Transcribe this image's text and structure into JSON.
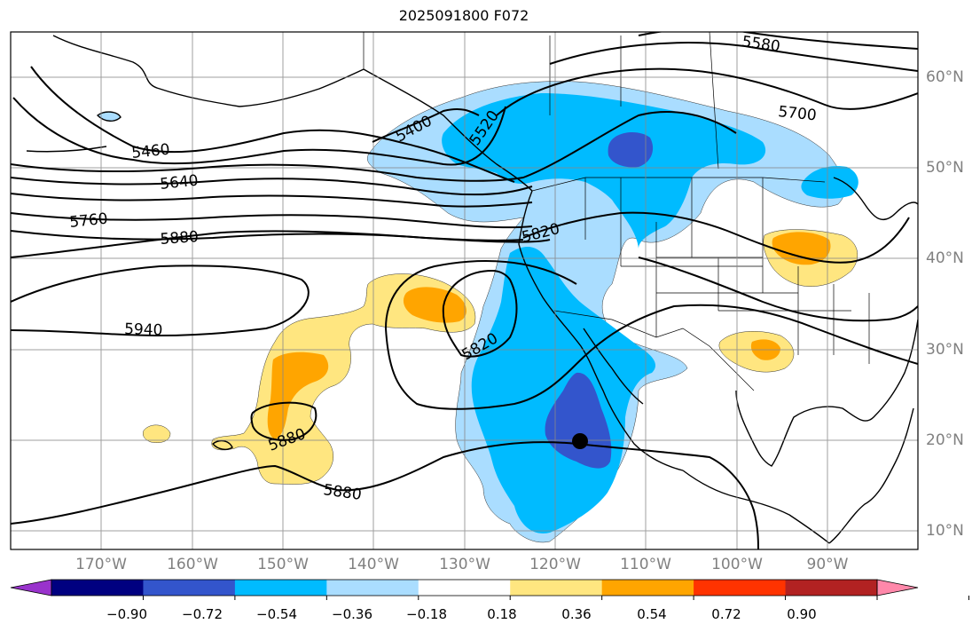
{
  "title": "2025091800 F072",
  "lat_labels": [
    "60°N",
    "50°N",
    "40°N",
    "30°N",
    "20°N",
    "10°N"
  ],
  "lon_labels": [
    "170°W",
    "160°W",
    "150°W",
    "140°W",
    "130°W",
    "120°W",
    "110°W",
    "100°W",
    "90°W"
  ],
  "contour_labels": [
    "5580",
    "5700",
    "5400",
    "5520",
    "5460",
    "5640",
    "5760",
    "5880",
    "5820",
    "5940",
    "5820",
    "5880",
    "5880"
  ],
  "colorbar": {
    "tick_labels": [
      "−0.90",
      "−0.72",
      "−0.54",
      "−0.36",
      "−0.18",
      "0.18",
      "0.36",
      "0.54",
      "0.72",
      "0.90"
    ],
    "colors": [
      "#9933cc",
      "#000080",
      "#3355cc",
      "#00bbff",
      "#aaddff",
      "#ffffff",
      "#ffe680",
      "#ffa500",
      "#ff3300",
      "#b22222",
      "#ff88aa"
    ]
  },
  "marker": {
    "label": "point marker",
    "lat": 20,
    "lon": -117
  }
}
